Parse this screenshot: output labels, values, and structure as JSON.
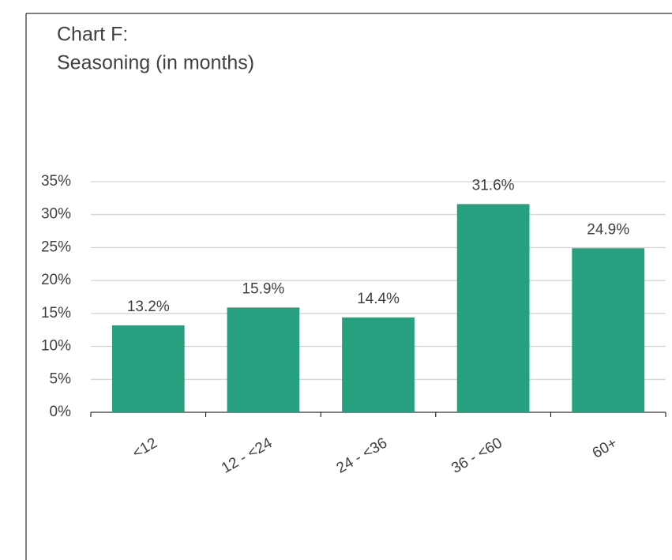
{
  "chart_data": {
    "type": "bar",
    "title": "Chart F:",
    "subtitle": "Seasoning (in months)",
    "categories": [
      "<12",
      "12 - <24",
      "24 - <36",
      "36 - <60",
      "60+"
    ],
    "values": [
      13.2,
      15.9,
      14.4,
      31.6,
      24.9
    ],
    "value_labels": [
      "13.2%",
      "15.9%",
      "14.4%",
      "31.6%",
      "24.9%"
    ],
    "color": "#27a07f",
    "ylim": [
      0,
      35
    ],
    "yticks": [
      {
        "value": 0,
        "label": "0%"
      },
      {
        "value": 5,
        "label": "5%"
      },
      {
        "value": 10,
        "label": "10%"
      },
      {
        "value": 15,
        "label": "15%"
      },
      {
        "value": 20,
        "label": "20%"
      },
      {
        "value": 25,
        "label": "25%"
      },
      {
        "value": 30,
        "label": "30%"
      },
      {
        "value": 35,
        "label": "35%"
      }
    ],
    "grid": true
  }
}
